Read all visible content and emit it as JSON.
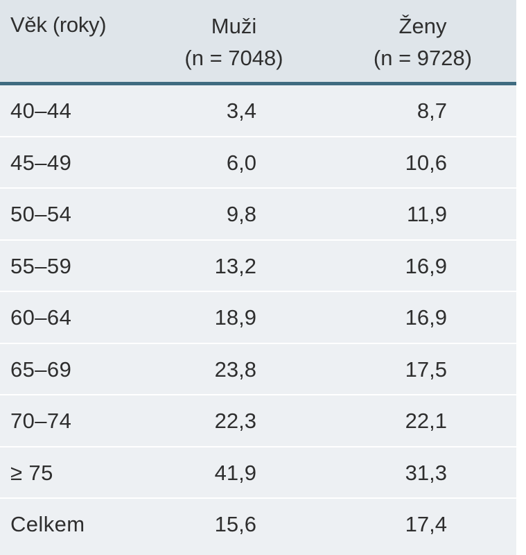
{
  "table": {
    "headers": {
      "age": "Věk (roky)",
      "men": "Muži",
      "men_n": "(n = 7048)",
      "women": "Ženy",
      "women_n": "(n = 9728)"
    },
    "rows": [
      {
        "age": "40–44",
        "men": "3,4",
        "women": "8,7"
      },
      {
        "age": "45–49",
        "men": "6,0",
        "women": "10,6"
      },
      {
        "age": "50–54",
        "men": "9,8",
        "women": "11,9"
      },
      {
        "age": "55–59",
        "men": "13,2",
        "women": "16,9"
      },
      {
        "age": "60–64",
        "men": "18,9",
        "women": "16,9"
      },
      {
        "age": "65–69",
        "men": "23,8",
        "women": "17,5"
      },
      {
        "age": "70–74",
        "men": "22,3",
        "women": "22,1"
      },
      {
        "age": "≥ 75",
        "men": "41,9",
        "women": "31,3"
      },
      {
        "age": "Celkem",
        "men": "15,6",
        "women": "17,4"
      }
    ]
  }
}
